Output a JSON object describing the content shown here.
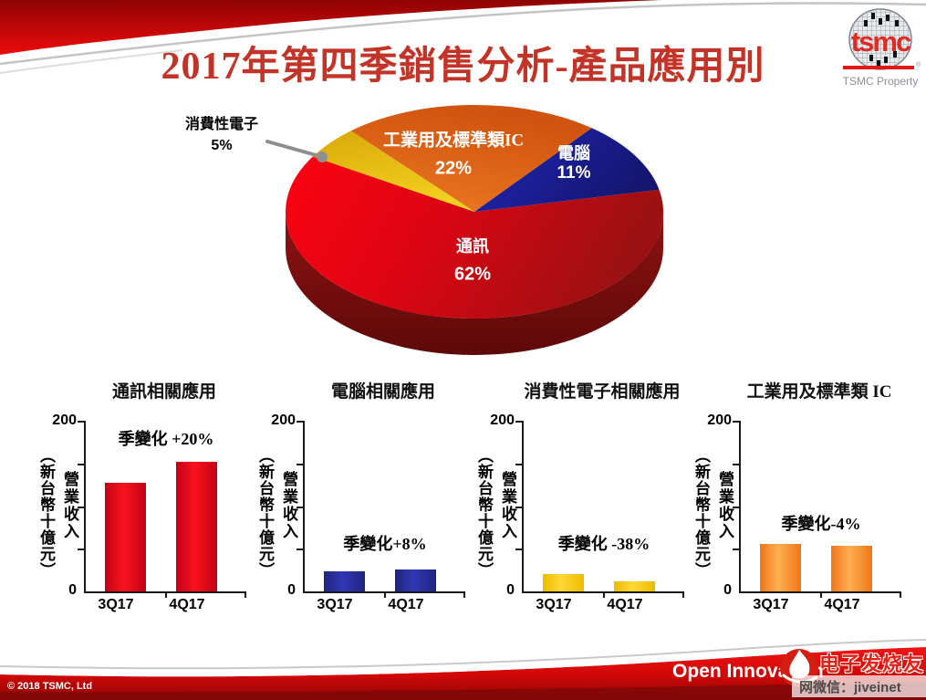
{
  "slide": {
    "title": "2017年第四季銷售分析-產品應用別",
    "title_color": "#c23427",
    "logo": {
      "brand": "tsmc",
      "caption": "TSMC Property",
      "reg": "®"
    },
    "footer": {
      "copyright": "© 2018 TSMC, Ltd",
      "slogan": "Open Innovation"
    },
    "watermark": {
      "site": "电子发烧友",
      "wechat": "网微信：jiveinet"
    }
  },
  "chart_data": [
    {
      "type": "pie",
      "title": "2017年第四季銷售分析-產品應用別",
      "legend_position": "on-slice",
      "slices": [
        {
          "label": "通訊",
          "pct": "62%",
          "value": 62,
          "color": "#e2061a"
        },
        {
          "label": "電腦",
          "pct": "11%",
          "value": 11,
          "color": "#1c1fa8"
        },
        {
          "label": "消費性電子",
          "pct": "5%",
          "value": 5,
          "color": "#e5bc0f"
        },
        {
          "label": "工業用及標準類IC",
          "pct": "22%",
          "value": 22,
          "color": "#e2641c"
        }
      ]
    },
    {
      "type": "bar",
      "title": "通訊相關應用",
      "annotation": "季變化 +20%",
      "categories": [
        "3Q17",
        "4Q17"
      ],
      "values": [
        128,
        153
      ],
      "ylim": [
        0,
        200
      ],
      "ytick_labels": [
        "200",
        "0"
      ],
      "ylabel": "營業收入",
      "ylabel_unit": "（新台幣十億元）",
      "bar_edge": "#c30016",
      "bar_mid": "#f8141f"
    },
    {
      "type": "bar",
      "title": "電腦相關應用",
      "annotation": "季變化+8%",
      "categories": [
        "3Q17",
        "4Q17"
      ],
      "values": [
        24,
        26
      ],
      "ylim": [
        0,
        200
      ],
      "ytick_labels": [
        "200",
        "0"
      ],
      "ylabel": "營業收入",
      "ylabel_unit": "（新台幣十億元）",
      "bar_edge": "#20247e",
      "bar_mid": "#3137b4"
    },
    {
      "type": "bar",
      "title": "消費性電子相關應用",
      "annotation": "季變化 -38%",
      "categories": [
        "3Q17",
        "4Q17"
      ],
      "values": [
        20,
        12
      ],
      "ylim": [
        0,
        200
      ],
      "ytick_labels": [
        "200",
        "0"
      ],
      "ylabel": "營業收入",
      "ylabel_unit": "（新台幣十億元）",
      "bar_edge": "#edba00",
      "bar_mid": "#ffd935"
    },
    {
      "type": "bar",
      "title": "工業用及標準類 IC",
      "annotation": "季變化-4%",
      "categories": [
        "3Q17",
        "4Q17"
      ],
      "values": [
        56,
        54
      ],
      "ylim": [
        0,
        200
      ],
      "ytick_labels": [
        "200",
        "0"
      ],
      "ylabel": "營業收入",
      "ylabel_unit": "（新台幣十億元）",
      "bar_edge": "#ef7518",
      "bar_mid": "#ffaf52"
    }
  ]
}
